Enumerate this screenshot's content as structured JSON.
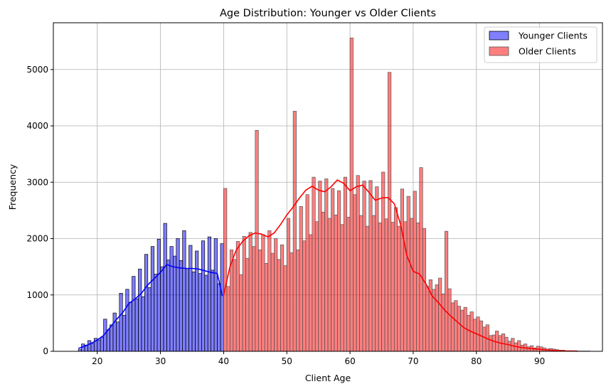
{
  "chart_data": {
    "type": "histogram",
    "title": "Age Distribution: Younger vs Older Clients",
    "xlabel": "Client Age",
    "ylabel": "Frequency",
    "xlim": [
      13.05,
      99.95
    ],
    "ylim": [
      0,
      5830
    ],
    "xticks": [
      20,
      30,
      40,
      50,
      60,
      70,
      80,
      90
    ],
    "yticks": [
      0,
      1000,
      2000,
      3000,
      4000,
      5000
    ],
    "grid": true,
    "legend_position": "top-right",
    "series": [
      {
        "name": "Younger Clients",
        "color": "#0000ff",
        "bin_start": 17,
        "bin_width": 0.5,
        "values": [
          30,
          130,
          110,
          190,
          140,
          230,
          200,
          250,
          570,
          380,
          470,
          680,
          520,
          1030,
          640,
          1100,
          870,
          1330,
          930,
          1460,
          970,
          1720,
          1130,
          1860,
          1370,
          1990,
          1500,
          2270,
          1620,
          1860,
          1690,
          2000,
          1610,
          2140,
          1470,
          1880,
          1410,
          1780,
          1380,
          1960,
          1350,
          2030,
          1440,
          2000,
          1200,
          1910
        ],
        "kde": {
          "x": [
            17,
            18,
            19,
            20,
            21,
            22,
            23,
            24,
            25,
            26,
            27,
            28,
            29,
            30,
            31,
            32,
            33,
            34,
            35,
            36,
            37,
            38,
            39,
            39.8
          ],
          "y": [
            50,
            90,
            140,
            200,
            280,
            420,
            560,
            680,
            850,
            930,
            1030,
            1180,
            1290,
            1400,
            1540,
            1500,
            1480,
            1470,
            1470,
            1460,
            1430,
            1400,
            1380,
            980
          ]
        }
      },
      {
        "name": "Older Clients",
        "color": "#ff0000",
        "bin_start": 40,
        "bin_width": 0.5,
        "values": [
          2890,
          1150,
          1800,
          1630,
          1950,
          1360,
          2040,
          1650,
          2110,
          1860,
          3920,
          1800,
          2070,
          1560,
          2140,
          1740,
          2000,
          1630,
          1890,
          1520,
          2360,
          1750,
          4260,
          1800,
          2570,
          1960,
          2780,
          2070,
          3090,
          2300,
          3020,
          2470,
          3060,
          2360,
          2890,
          2420,
          2850,
          2250,
          3090,
          2380,
          5560,
          2780,
          3120,
          2410,
          3020,
          2220,
          3030,
          2410,
          2920,
          2280,
          3180,
          2350,
          4950,
          2290,
          2550,
          2220,
          2880,
          2300,
          2750,
          2360,
          2840,
          2280,
          3260,
          2180,
          1150,
          1270,
          1100,
          1180,
          1300,
          1020,
          2130,
          1110,
          860,
          900,
          800,
          730,
          780,
          640,
          700,
          570,
          610,
          540,
          430,
          470,
          280,
          290,
          360,
          280,
          310,
          250,
          180,
          230,
          150,
          190,
          110,
          130,
          80,
          100,
          60,
          90,
          80,
          60,
          40,
          50,
          40,
          30,
          20,
          20,
          10,
          10,
          10,
          10,
          5,
          5,
          5,
          5
        ],
        "kde": {
          "x": [
            40,
            41,
            42,
            43,
            44,
            45,
            46,
            47,
            48,
            49,
            50,
            51,
            52,
            53,
            54,
            55,
            56,
            57,
            58,
            59,
            60,
            61,
            62,
            63,
            64,
            65,
            66,
            67,
            68,
            69,
            70,
            71,
            72,
            73,
            74,
            75,
            76,
            77,
            78,
            79,
            80,
            81,
            82,
            83,
            84,
            85,
            86,
            87,
            88,
            89,
            90,
            91,
            92,
            93,
            94,
            95,
            96
          ],
          "y": [
            1000,
            1500,
            1800,
            1950,
            2050,
            2100,
            2080,
            2030,
            2100,
            2250,
            2420,
            2560,
            2720,
            2860,
            2930,
            2860,
            2830,
            2920,
            3040,
            2980,
            2850,
            2920,
            2950,
            2820,
            2680,
            2720,
            2730,
            2620,
            2250,
            1700,
            1420,
            1370,
            1200,
            980,
            860,
            730,
            620,
            520,
            420,
            360,
            310,
            260,
            210,
            170,
            140,
            120,
            90,
            70,
            55,
            45,
            35,
            25,
            18,
            12,
            8,
            5,
            3
          ]
        }
      }
    ]
  }
}
